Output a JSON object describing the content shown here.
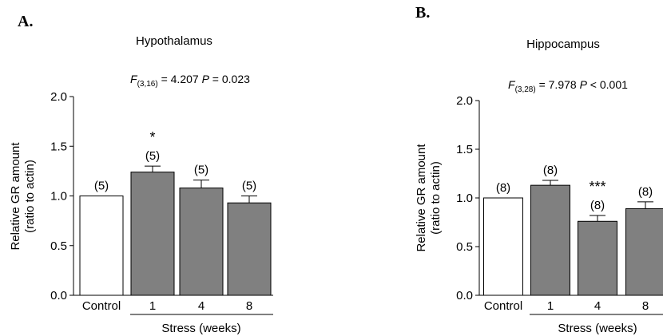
{
  "chart_data": [
    {
      "type": "bar",
      "panel_label": "A.",
      "title": "Hypothalamus",
      "stats": {
        "F_symbol": "F",
        "F_df": "(3,16)",
        "F_value": "= 4.207",
        "P_symbol": "P",
        "P_value": "= 0.023"
      },
      "ylabel_line1": "Relative GR amount",
      "ylabel_line2": "(ratio to actin)",
      "ylim": [
        0,
        2.0
      ],
      "yticks": [
        "0.0",
        "0.5",
        "1.0",
        "1.5",
        "2.0"
      ],
      "categories": [
        "Control",
        "1",
        "4",
        "8"
      ],
      "values": [
        1.0,
        1.24,
        1.08,
        0.93
      ],
      "errors": [
        0,
        0.06,
        0.08,
        0.07
      ],
      "n_labels": [
        "(5)",
        "(5)",
        "(5)",
        "(5)"
      ],
      "significance": [
        "",
        "*",
        "",
        ""
      ],
      "group_label": "Stress (weeks)",
      "bar_colors": [
        "#ffffff",
        "#808080",
        "#808080",
        "#808080"
      ]
    },
    {
      "type": "bar",
      "panel_label": "B.",
      "title": "Hippocampus",
      "stats": {
        "F_symbol": "F",
        "F_df": "(3,28)",
        "F_value": "= 7.978",
        "P_symbol": "P",
        "P_value": "< 0.001"
      },
      "ylabel_line1": "Relative GR amount",
      "ylabel_line2": "(ratio to actin)",
      "ylim": [
        0,
        2.0
      ],
      "yticks": [
        "0.0",
        "0.5",
        "1.0",
        "1.5",
        "2.0"
      ],
      "categories": [
        "Control",
        "1",
        "4",
        "8"
      ],
      "values": [
        1.0,
        1.13,
        0.76,
        0.89
      ],
      "errors": [
        0,
        0.05,
        0.06,
        0.07
      ],
      "n_labels": [
        "(8)",
        "(8)",
        "(8)",
        "(8)"
      ],
      "significance": [
        "",
        "",
        "***",
        ""
      ],
      "group_label": "Stress (weeks)",
      "bar_colors": [
        "#ffffff",
        "#808080",
        "#808080",
        "#808080"
      ]
    }
  ]
}
